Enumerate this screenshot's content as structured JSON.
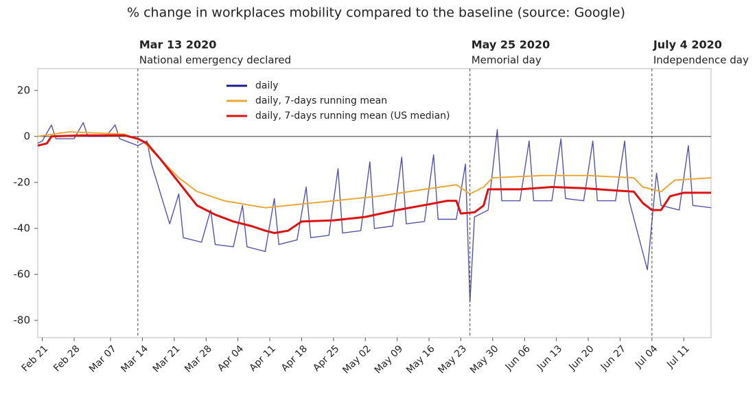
{
  "chart_data": {
    "type": "line",
    "title": "% change in workplaces mobility compared to the baseline (source: Google)",
    "xlim": [
      "2020-02-20",
      "2020-07-17"
    ],
    "ylim": [
      -87.5,
      29.5
    ],
    "yticks": [
      -80,
      -60,
      -40,
      -20,
      0,
      20
    ],
    "xticks": [
      {
        "value": "2020-02-21",
        "label": "Feb 21"
      },
      {
        "value": "2020-02-28",
        "label": "Feb 28"
      },
      {
        "value": "2020-03-07",
        "label": "Mar 07"
      },
      {
        "value": "2020-03-14",
        "label": "Mar 14"
      },
      {
        "value": "2020-03-21",
        "label": "Mar 21"
      },
      {
        "value": "2020-03-28",
        "label": "Mar 28"
      },
      {
        "value": "2020-04-04",
        "label": "Apr 04"
      },
      {
        "value": "2020-04-11",
        "label": "Apr 11"
      },
      {
        "value": "2020-04-18",
        "label": "Apr 18"
      },
      {
        "value": "2020-04-25",
        "label": "Apr 25"
      },
      {
        "value": "2020-05-02",
        "label": "May 02"
      },
      {
        "value": "2020-05-09",
        "label": "May 09"
      },
      {
        "value": "2020-05-16",
        "label": "May 16"
      },
      {
        "value": "2020-05-23",
        "label": "May 23"
      },
      {
        "value": "2020-05-30",
        "label": "May 30"
      },
      {
        "value": "2020-06-06",
        "label": "Jun 06"
      },
      {
        "value": "2020-06-13",
        "label": "Jun 13"
      },
      {
        "value": "2020-06-20",
        "label": "Jun 20"
      },
      {
        "value": "2020-06-27",
        "label": "Jun 27"
      },
      {
        "value": "2020-07-04",
        "label": "Jul 04"
      },
      {
        "value": "2020-07-11",
        "label": "Jul 11"
      }
    ],
    "annotations": [
      {
        "x": "2020-03-13",
        "label": "Mar 13 2020",
        "text": "National emergency declared"
      },
      {
        "x": "2020-05-25",
        "label": "May 25 2020",
        "text": "Memorial day"
      },
      {
        "x": "2020-07-04",
        "label": "July 4 2020",
        "text": "Independence day"
      }
    ],
    "series": [
      {
        "name": "daily",
        "color": "#1a1a8c",
        "x": [
          "2020-02-20",
          "2020-02-21",
          "2020-02-23",
          "2020-02-24",
          "2020-02-28",
          "2020-03-01",
          "2020-03-02",
          "2020-03-06",
          "2020-03-08",
          "2020-03-09",
          "2020-03-13",
          "2020-03-15",
          "2020-03-16",
          "2020-03-20",
          "2020-03-22",
          "2020-03-23",
          "2020-03-27",
          "2020-03-29",
          "2020-03-30",
          "2020-04-03",
          "2020-04-05",
          "2020-04-06",
          "2020-04-10",
          "2020-04-12",
          "2020-04-13",
          "2020-04-17",
          "2020-04-19",
          "2020-04-20",
          "2020-04-24",
          "2020-04-26",
          "2020-04-27",
          "2020-05-01",
          "2020-05-03",
          "2020-05-04",
          "2020-05-08",
          "2020-05-10",
          "2020-05-11",
          "2020-05-15",
          "2020-05-17",
          "2020-05-18",
          "2020-05-22",
          "2020-05-24",
          "2020-05-25",
          "2020-05-26",
          "2020-05-29",
          "2020-05-31",
          "2020-06-01",
          "2020-06-05",
          "2020-06-07",
          "2020-06-08",
          "2020-06-12",
          "2020-06-14",
          "2020-06-15",
          "2020-06-19",
          "2020-06-21",
          "2020-06-22",
          "2020-06-26",
          "2020-06-28",
          "2020-06-29",
          "2020-07-03",
          "2020-07-05",
          "2020-07-06",
          "2020-07-10",
          "2020-07-12",
          "2020-07-13",
          "2020-07-17"
        ],
        "values": [
          -3,
          -2,
          5,
          -1,
          -1,
          6,
          0,
          0,
          5,
          -1,
          -4,
          -2,
          -12,
          -38,
          -25,
          -44,
          -46,
          -32,
          -47,
          -48,
          -30,
          -48,
          -50,
          -27,
          -47,
          -45,
          -22,
          -44,
          -43,
          -14,
          -42,
          -41,
          -11,
          -40,
          -39,
          -9,
          -38,
          -37,
          -8,
          -36,
          -36,
          -12,
          -72,
          -35,
          -32,
          3,
          -28,
          -28,
          -2,
          -28,
          -28,
          -1,
          -27,
          -28,
          -2,
          -28,
          -28,
          -2,
          -28,
          -58,
          -16,
          -30,
          -32,
          -4,
          -30,
          -31
        ]
      },
      {
        "name": "daily, 7-days running mean",
        "color": "#e8a838",
        "x": [
          "2020-02-20",
          "2020-02-27",
          "2020-03-10",
          "2020-03-14",
          "2020-03-18",
          "2020-03-22",
          "2020-03-26",
          "2020-04-01",
          "2020-04-10",
          "2020-04-15",
          "2020-04-25",
          "2020-05-05",
          "2020-05-15",
          "2020-05-22",
          "2020-05-25",
          "2020-05-28",
          "2020-05-30",
          "2020-06-10",
          "2020-06-20",
          "2020-06-30",
          "2020-07-02",
          "2020-07-06",
          "2020-07-09",
          "2020-07-17"
        ],
        "values": [
          0,
          2,
          1,
          -2,
          -10,
          -18,
          -24,
          -28,
          -31,
          -30,
          -28,
          -26,
          -23,
          -21,
          -25,
          -22,
          -18,
          -17,
          -17,
          -18,
          -22,
          -24,
          -19,
          -18
        ]
      },
      {
        "name": "daily, 7-days running mean (US median)",
        "color": "#dd1111",
        "x": [
          "2020-02-20",
          "2020-02-22",
          "2020-02-23",
          "2020-03-01",
          "2020-03-10",
          "2020-03-13",
          "2020-03-15",
          "2020-03-18",
          "2020-03-22",
          "2020-03-26",
          "2020-03-30",
          "2020-04-03",
          "2020-04-07",
          "2020-04-10",
          "2020-04-12",
          "2020-04-15",
          "2020-04-18",
          "2020-04-25",
          "2020-05-02",
          "2020-05-09",
          "2020-05-16",
          "2020-05-20",
          "2020-05-22",
          "2020-05-23",
          "2020-05-26",
          "2020-05-28",
          "2020-05-29",
          "2020-06-05",
          "2020-06-12",
          "2020-06-19",
          "2020-06-26",
          "2020-06-30",
          "2020-07-02",
          "2020-07-04",
          "2020-07-06",
          "2020-07-08",
          "2020-07-11",
          "2020-07-17"
        ],
        "values": [
          -4,
          -3,
          0,
          0.5,
          0.5,
          -1,
          -3,
          -10,
          -20,
          -30,
          -34,
          -37,
          -39,
          -41,
          -42,
          -41,
          -37,
          -36.5,
          -35,
          -32,
          -29.5,
          -28,
          -28,
          -33.5,
          -33,
          -30,
          -23,
          -23,
          -22,
          -22.5,
          -23.5,
          -24,
          -29,
          -32,
          -32,
          -26,
          -24.5,
          -24.5
        ]
      }
    ]
  }
}
